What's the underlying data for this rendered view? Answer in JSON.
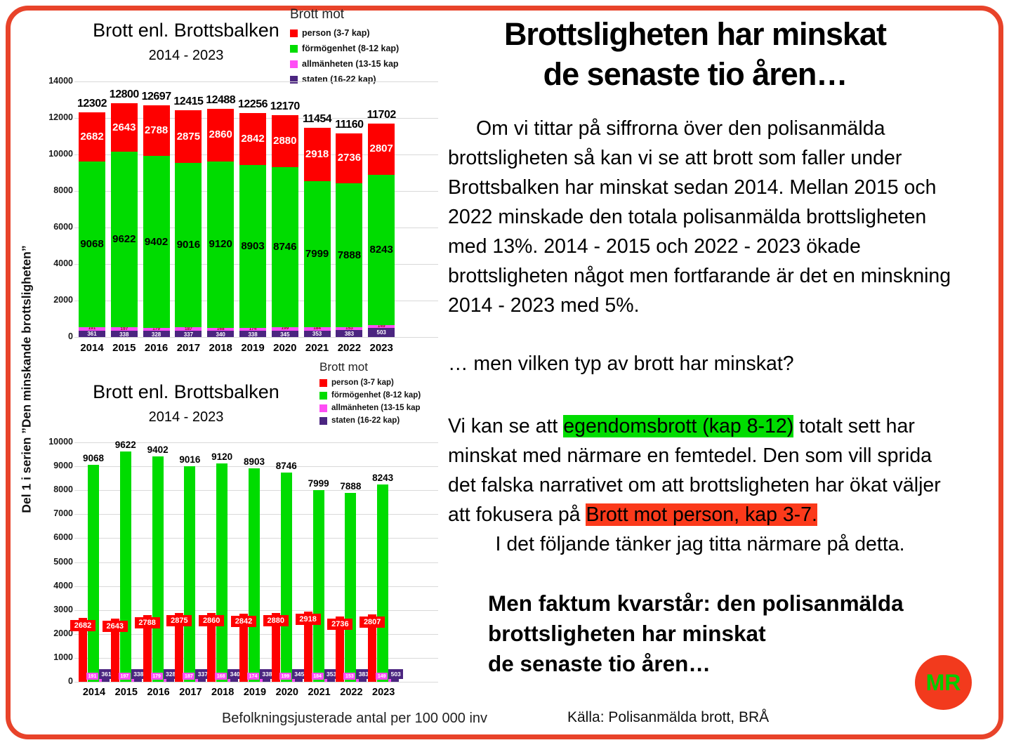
{
  "colors": {
    "border": "#e8432a",
    "bar_red": "#fe0000",
    "bar_green": "#00dc00",
    "bar_pink": "#ff4df5",
    "bar_purple": "#4b2580",
    "highlight_green": "#00dc00",
    "highlight_red": "#fb3a1b",
    "badge_bg": "#f23a1d",
    "badge_text": "#00cc00"
  },
  "left_panel": {
    "series_title": "Del 1 i serien ”Den minskande brottsligheten”"
  },
  "chart_data": [
    {
      "type": "bar",
      "variant": "stacked",
      "title": "Brott enl. Brottsbalken",
      "subtitle": "2014 - 2023",
      "legend_title": "Brott mot",
      "legend_position": "top-right",
      "grid": true,
      "categories": [
        "2014",
        "2015",
        "2016",
        "2017",
        "2018",
        "2019",
        "2020",
        "2021",
        "2022",
        "2023"
      ],
      "series": [
        {
          "name": "person (3-7 kap)",
          "color": "#fe0000",
          "values": [
            2682,
            2643,
            2788,
            2875,
            2860,
            2842,
            2880,
            2918,
            2736,
            2807
          ]
        },
        {
          "name": "förmögenhet (8-12 kap)",
          "color": "#00dc00",
          "values": [
            9068,
            9622,
            9402,
            9016,
            9120,
            8903,
            8746,
            7999,
            7888,
            8243
          ]
        },
        {
          "name": "allmänheten (13-15 kap",
          "color": "#ff4df5",
          "values": [
            191,
            197,
            179,
            187,
            168,
            174,
            199,
            184,
            153,
            149
          ]
        },
        {
          "name": "staten (16-22 kap)",
          "color": "#4b2580",
          "values": [
            361,
            338,
            328,
            337,
            340,
            338,
            345,
            353,
            383,
            503
          ]
        }
      ],
      "totals": [
        12302,
        12800,
        12697,
        12415,
        12488,
        12256,
        12170,
        11454,
        11160,
        11702
      ],
      "ylim": [
        0,
        14000
      ],
      "ytick_step": 2000
    },
    {
      "type": "bar",
      "variant": "grouped",
      "title": "Brott enl. Brottsbalken",
      "subtitle": "2014 - 2023",
      "legend_title": "Brott mot",
      "legend_position": "top-right",
      "grid": true,
      "categories": [
        "2014",
        "2015",
        "2016",
        "2017",
        "2018",
        "2019",
        "2020",
        "2021",
        "2022",
        "2023"
      ],
      "series": [
        {
          "name": "person (3-7 kap)",
          "color": "#fe0000",
          "values": [
            2682,
            2643,
            2788,
            2875,
            2860,
            2842,
            2880,
            2918,
            2736,
            2807
          ]
        },
        {
          "name": "förmögenhet (8-12 kap)",
          "color": "#00dc00",
          "values": [
            9068,
            9622,
            9402,
            9016,
            9120,
            8903,
            8746,
            7999,
            7888,
            8243
          ]
        },
        {
          "name": "allmänheten (13-15 kap",
          "color": "#ff4df5",
          "values": [
            191,
            197,
            179,
            187,
            168,
            174,
            199,
            184,
            153,
            149
          ]
        },
        {
          "name": "staten (16-22 kap)",
          "color": "#4b2580",
          "values": [
            361,
            338,
            328,
            337,
            340,
            338,
            345,
            353,
            383,
            503
          ]
        }
      ],
      "ylim": [
        0,
        10000
      ],
      "ytick_step": 1000
    }
  ],
  "footer": {
    "chart_footnote": "Befolkningsjusterade antal per 100 000 inv",
    "source": "Källa: Polisanmälda brott, BRÅ"
  },
  "right_panel": {
    "title_lines": [
      "Brottsligheten har minskat",
      "de senaste tio åren…"
    ],
    "paragraph1": "Om vi tittar på siffrorna över den polisanmälda brottsligheten så kan vi se att brott som faller under Brottsbalken har minskat sedan 2014. Mellan 2015 och 2022 minskade den totala polisanmälda brottsligheten med 13%. 2014 - 2015 och 2022 - 2023 ökade brottsligheten något men fortfarande är det en minskning 2014 - 2023 med 5%.",
    "question": "… men vilken typ av brott har minskat?",
    "para2_before": "Vi kan se att ",
    "highlight_green": "egendomsbrott (kap 8-12)",
    "para2_middle": " totalt sett har minskat med närmare en femtedel. Den som vill sprida det falska narrativet om att brottsligheten har ökat väljer att fokusera på ",
    "highlight_red": "Brott mot person, kap 3-7.",
    "para2_closing": "I det följande tänker jag titta närmare på detta.",
    "bold_lines": [
      "Men faktum kvarstår: den polisanmälda",
      "brottsligheten har minskat",
      "de senaste tio åren…"
    ],
    "logo_text": "MR"
  }
}
